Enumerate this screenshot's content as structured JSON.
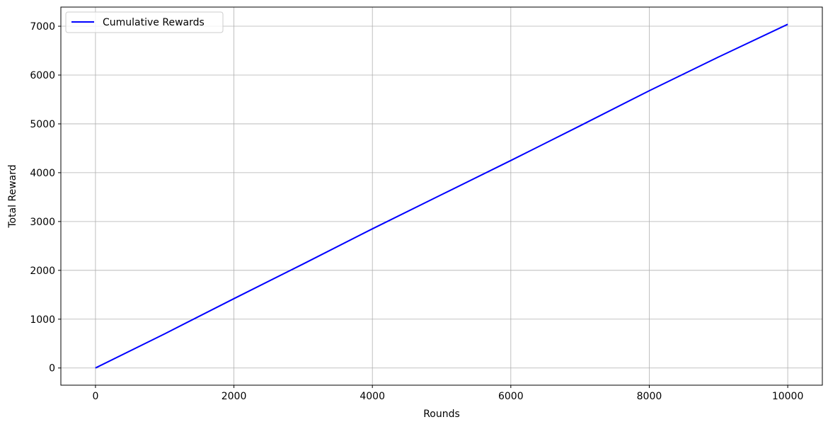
{
  "chart_data": {
    "type": "line",
    "title": "",
    "xlabel": "Rounds",
    "ylabel": "Total Reward",
    "xlim": [
      -500,
      10500
    ],
    "ylim": [
      -352,
      7392
    ],
    "xticks": [
      0,
      2000,
      4000,
      6000,
      8000,
      10000
    ],
    "yticks": [
      0,
      1000,
      2000,
      3000,
      4000,
      5000,
      6000,
      7000
    ],
    "grid": true,
    "legend_placement": "top-left",
    "series": [
      {
        "name": "Cumulative Rewards",
        "color": "#0000ff",
        "x": [
          0,
          1000,
          2000,
          3000,
          4000,
          5000,
          6000,
          7000,
          8000,
          9000,
          10000
        ],
        "y": [
          0,
          700,
          1420,
          2130,
          2850,
          3550,
          4250,
          4960,
          5680,
          6370,
          7040
        ]
      }
    ]
  }
}
